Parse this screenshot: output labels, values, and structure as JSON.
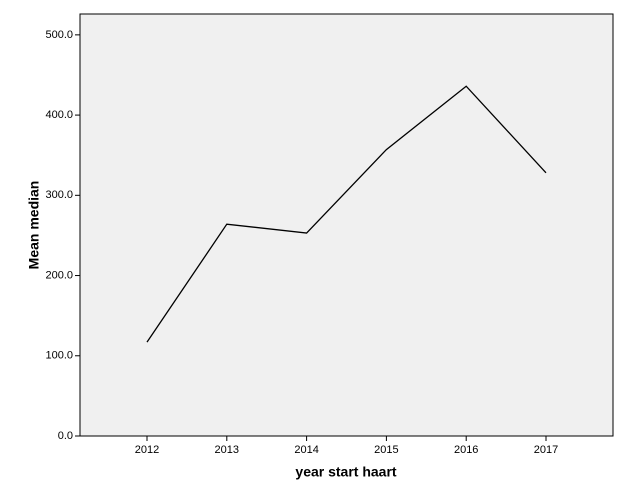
{
  "chart_data": {
    "type": "line",
    "x_label": "year start haart",
    "y_label": "Mean median",
    "categories": [
      "2012",
      "2013",
      "2014",
      "2015",
      "2016",
      "2017"
    ],
    "values": [
      117,
      264,
      253,
      357,
      436,
      328
    ],
    "color": "#000000",
    "ylim": [
      0,
      526
    ],
    "yticks": [
      {
        "value": 0,
        "label": "0.0"
      },
      {
        "value": 100,
        "label": "100.0"
      },
      {
        "value": 200,
        "label": "200.0"
      },
      {
        "value": 300,
        "label": "300.0"
      },
      {
        "value": 400,
        "label": "400.0"
      },
      {
        "value": 500,
        "label": "500.0"
      }
    ],
    "plot_background": "#f0f0f0"
  }
}
